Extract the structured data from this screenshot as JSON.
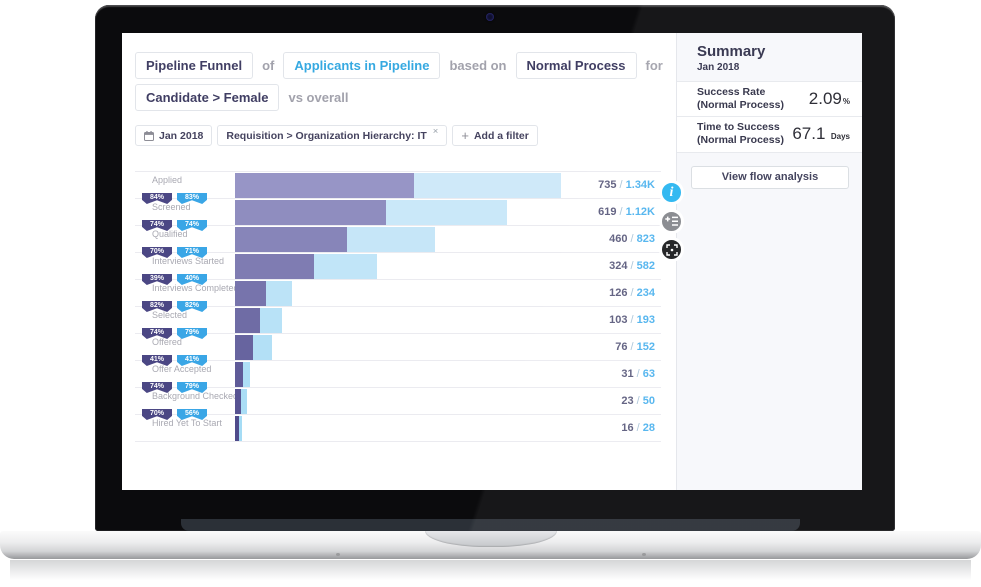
{
  "header": {
    "line1": [
      {
        "kind": "box",
        "style": "dark",
        "text": "Pipeline Funnel"
      },
      {
        "kind": "plain",
        "text": "of"
      },
      {
        "kind": "box",
        "style": "blue",
        "text": "Applicants in Pipeline"
      },
      {
        "kind": "plain",
        "text": "based on"
      },
      {
        "kind": "box",
        "style": "dark",
        "text": "Normal Process"
      },
      {
        "kind": "plain",
        "text": "for"
      }
    ],
    "line2": [
      {
        "kind": "box",
        "style": "dark",
        "text": "Candidate > Female"
      },
      {
        "kind": "plain",
        "text": "vs overall"
      }
    ]
  },
  "filters": {
    "date": "Jan 2018",
    "applied_filter": "Requisition > Organization Hierarchy: IT",
    "remove": "×",
    "add": "Add a filter",
    "add_plus": "+"
  },
  "chart_data": {
    "type": "funnel-bar",
    "title": "Pipeline Funnel of Applicants in Pipeline based on Normal Process for Candidate > Female vs overall",
    "period": "Jan 2018",
    "series": [
      "Candidate > Female",
      "Overall"
    ],
    "xmax": 1340,
    "legend_position": "none",
    "grid": true,
    "rows": [
      {
        "label": "Applied",
        "selected": 735,
        "selected_display": "735",
        "overall": 1340,
        "overall_display": "1.34K",
        "conv_selected": "84%",
        "conv_overall": "83%"
      },
      {
        "label": "Screened",
        "selected": 619,
        "selected_display": "619",
        "overall": 1120,
        "overall_display": "1.12K",
        "conv_selected": "74%",
        "conv_overall": "74%"
      },
      {
        "label": "Qualified",
        "selected": 460,
        "selected_display": "460",
        "overall": 823,
        "overall_display": "823",
        "conv_selected": "70%",
        "conv_overall": "71%"
      },
      {
        "label": "Interviews Started",
        "selected": 324,
        "selected_display": "324",
        "overall": 582,
        "overall_display": "582",
        "conv_selected": "39%",
        "conv_overall": "40%"
      },
      {
        "label": "Interviews Completed",
        "selected": 126,
        "selected_display": "126",
        "overall": 234,
        "overall_display": "234",
        "conv_selected": "82%",
        "conv_overall": "82%"
      },
      {
        "label": "Selected",
        "selected": 103,
        "selected_display": "103",
        "overall": 193,
        "overall_display": "193",
        "conv_selected": "74%",
        "conv_overall": "79%"
      },
      {
        "label": "Offered",
        "selected": 76,
        "selected_display": "76",
        "overall": 152,
        "overall_display": "152",
        "conv_selected": "41%",
        "conv_overall": "41%"
      },
      {
        "label": "Offer Accepted",
        "selected": 31,
        "selected_display": "31",
        "overall": 63,
        "overall_display": "63",
        "conv_selected": "74%",
        "conv_overall": "79%"
      },
      {
        "label": "Background Checked",
        "selected": 23,
        "selected_display": "23",
        "overall": 50,
        "overall_display": "50",
        "conv_selected": "70%",
        "conv_overall": "56%"
      },
      {
        "label": "Hired Yet To Start",
        "selected": 16,
        "selected_display": "16",
        "overall": 28,
        "overall_display": "28",
        "conv_selected": null,
        "conv_overall": null
      }
    ]
  },
  "summary": {
    "title": "Summary",
    "period": "Jan 2018",
    "metrics": [
      {
        "label": "Success Rate (Normal Process)",
        "value": "2.09",
        "unit": "%"
      },
      {
        "label": "Time to Success (Normal Process)",
        "value": "67.1",
        "unit": "Days"
      }
    ],
    "button": "View flow analysis"
  },
  "fab": {
    "info": "i"
  },
  "colors": {
    "accent_blue": "#36a9e1",
    "dark_navy": "#403e63",
    "funnel_selected_start": "#9795c6",
    "funnel_selected_end": "#4f4b8b",
    "funnel_overall_start": "#cfe9f9",
    "funnel_overall_end": "#a5dcf5",
    "badge_selected": "#4b4784",
    "badge_overall": "#3aa6e6",
    "value_selected": "#5d5d7e",
    "value_overall": "#4fb3ee"
  }
}
